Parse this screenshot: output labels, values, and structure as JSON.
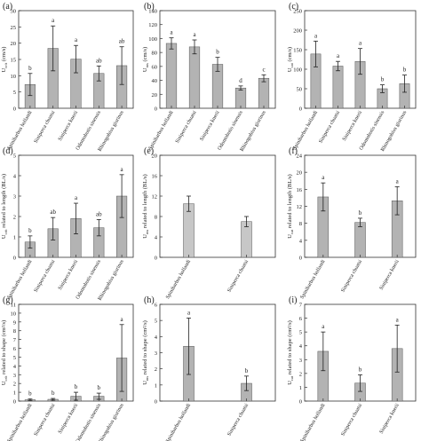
{
  "chart_data": [
    {
      "panel": "(a)",
      "type": "bar",
      "ylabel": "U_crit (cm/s)",
      "ylim": [
        0,
        30
      ],
      "yticks": [
        0,
        5,
        10,
        15,
        20,
        25,
        30
      ],
      "categories": [
        "Spinibarbus hollandi",
        "Siniperca chuatsi",
        "Siniperca knerii",
        "Odontobutis sinensis",
        "Rhinogobius giurinus"
      ],
      "values": [
        7.3,
        18.4,
        15.1,
        10.7,
        13.1
      ],
      "errors": [
        3.4,
        6.9,
        4.2,
        2.3,
        5.8
      ],
      "letters": [
        "b",
        "a",
        "a",
        "ab",
        "ab"
      ],
      "colors": [
        "#b3b3b3",
        "#b3b3b3",
        "#b3b3b3",
        "#b3b3b3",
        "#b3b3b3"
      ]
    },
    {
      "panel": "(b)",
      "type": "bar",
      "ylabel": "U_ms (cm/s)",
      "ylim": [
        0,
        140
      ],
      "yticks": [
        0,
        20,
        40,
        60,
        80,
        100,
        120,
        140
      ],
      "categories": [
        "Spinibarbus hollandi",
        "Siniperca chuatsi",
        "Siniperca knerii",
        "Odontobutis sinensis",
        "Rhinogobius giurinus"
      ],
      "values": [
        93,
        88,
        63,
        29,
        43
      ],
      "errors": [
        8,
        10,
        10,
        3,
        5
      ],
      "letters": [
        "a",
        "a",
        "b",
        "d",
        "c"
      ],
      "colors": [
        "#b3b3b3",
        "#b3b3b3",
        "#b3b3b3",
        "#b3b3b3",
        "#b3b3b3"
      ]
    },
    {
      "panel": "(c)",
      "type": "bar",
      "ylabel": "U_cat (cm/s)",
      "ylim": [
        0,
        250
      ],
      "yticks": [
        0,
        50,
        100,
        150,
        200,
        250
      ],
      "categories": [
        "Spinibarbus hollandi",
        "Siniperca chuatsi",
        "Siniperca knerii",
        "Odontobutis sinensis",
        "Rhinogobius giurinus"
      ],
      "values": [
        139,
        108,
        120,
        50,
        63
      ],
      "errors": [
        33,
        12,
        33,
        10,
        22
      ],
      "letters": [
        "a",
        "a",
        "a",
        "b",
        "b"
      ],
      "colors": [
        "#b3b3b3",
        "#b3b3b3",
        "#b3b3b3",
        "#b3b3b3",
        "#b3b3b3"
      ]
    },
    {
      "panel": "(d)",
      "type": "bar",
      "ylabel": "U_crit related to length (BL/s)",
      "ylim": [
        0,
        5
      ],
      "yticks": [
        0,
        1,
        2,
        3,
        4,
        5
      ],
      "categories": [
        "Spinibarbus hollandi",
        "Siniperca chuatsi",
        "Siniperca knerii",
        "Odontobutis sinensis",
        "Rhinogobius giurinus"
      ],
      "values": [
        0.75,
        1.4,
        1.9,
        1.45,
        3.0
      ],
      "errors": [
        0.3,
        0.55,
        0.75,
        0.4,
        1.05
      ],
      "letters": [
        "b",
        "ab",
        "a",
        "ab",
        "a"
      ],
      "colors": [
        "#b3b3b3",
        "#b3b3b3",
        "#b3b3b3",
        "#b3b3b3",
        "#b3b3b3"
      ]
    },
    {
      "panel": "(e)",
      "type": "bar",
      "ylabel": "U_ms related to length (BL/s)",
      "ylim": [
        0,
        20
      ],
      "yticks": [
        0,
        4,
        8,
        12,
        16,
        20
      ],
      "categories": [
        "Spinibarbus hollandi",
        "Siniperca chuatsi"
      ],
      "values": [
        10.5,
        7.0
      ],
      "errors": [
        1.5,
        1.0
      ],
      "letters": [
        "",
        ""
      ],
      "colors": [
        "#c7c7c7",
        "#c7c7c7"
      ]
    },
    {
      "panel": "(f)",
      "type": "bar",
      "ylabel": "U_cat related to length (BL/s)",
      "ylim": [
        0,
        24
      ],
      "yticks": [
        0,
        4,
        8,
        12,
        16,
        20,
        24
      ],
      "categories": [
        "Spinibarbus hollandi",
        "Siniperca chuatsi",
        "Siniperca knerii"
      ],
      "values": [
        14.2,
        8.2,
        13.3
      ],
      "errors": [
        3.3,
        1.0,
        3.3
      ],
      "letters": [
        "a",
        "b",
        "a"
      ],
      "colors": [
        "#b3b3b3",
        "#b3b3b3",
        "#b3b3b3"
      ]
    },
    {
      "panel": "(g)",
      "type": "bar",
      "ylabel": "U_crit related to shape (cm²/s)",
      "ylim": [
        0,
        11
      ],
      "yticks": [
        0,
        1,
        2,
        3,
        4,
        5,
        6,
        7,
        8,
        9,
        10,
        11
      ],
      "categories": [
        "Spinibarbus hollandi",
        "Siniperca chuatsi",
        "Siniperca knerii",
        "Odontobutis sinensis",
        "Rhinogobius giurinus"
      ],
      "values": [
        0.15,
        0.2,
        0.55,
        0.55,
        4.9
      ],
      "errors": [
        0.08,
        0.1,
        0.45,
        0.35,
        3.8
      ],
      "letters": [
        "b",
        "b",
        "b",
        "b",
        "a"
      ],
      "colors": [
        "#b3b3b3",
        "#b3b3b3",
        "#b3b3b3",
        "#b3b3b3",
        "#b3b3b3"
      ]
    },
    {
      "panel": "(h)",
      "type": "bar",
      "ylabel": "U_ms related to shape (cm²/s)",
      "ylim": [
        0,
        6
      ],
      "yticks": [
        0,
        1,
        2,
        3,
        4,
        5,
        6
      ],
      "categories": [
        "Spinibarbus hollandi",
        "Siniperca chuatsi"
      ],
      "values": [
        3.4,
        1.1
      ],
      "errors": [
        1.75,
        0.45
      ],
      "letters": [
        "a",
        "b"
      ],
      "colors": [
        "#b3b3b3",
        "#b3b3b3"
      ]
    },
    {
      "panel": "(i)",
      "type": "bar",
      "ylabel": "U_cat related to shape (cm²/s)",
      "ylim": [
        0,
        7
      ],
      "yticks": [
        0,
        1,
        2,
        3,
        4,
        5,
        6,
        7
      ],
      "categories": [
        "Spinibarbus hollandi",
        "Siniperca chuatsi",
        "Siniperca knerii"
      ],
      "values": [
        3.6,
        1.3,
        3.8
      ],
      "errors": [
        1.4,
        0.6,
        1.7
      ],
      "letters": [
        "a",
        "b",
        "a"
      ],
      "colors": [
        "#b3b3b3",
        "#b3b3b3",
        "#b3b3b3"
      ]
    }
  ]
}
